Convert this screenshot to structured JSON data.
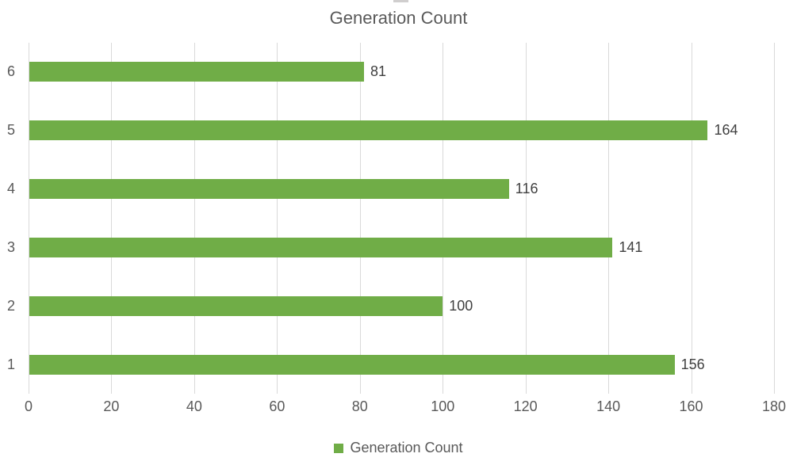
{
  "chart_data": {
    "type": "bar",
    "orientation": "horizontal",
    "title": "Generation Count",
    "series_name": "Generation Count",
    "categories": [
      "1",
      "2",
      "3",
      "4",
      "5",
      "6"
    ],
    "values": [
      156,
      100,
      141,
      116,
      164,
      81
    ],
    "x_ticks": [
      0,
      20,
      40,
      60,
      80,
      100,
      120,
      140,
      160,
      180
    ],
    "xlim": [
      0,
      180
    ],
    "xlabel": "",
    "ylabel": "",
    "grid": "vertical-major-only",
    "data_labels": true,
    "legend_position": "bottom",
    "category_order_on_screen_top_to_bottom": [
      "6",
      "5",
      "4",
      "3",
      "2",
      "1"
    ]
  },
  "colors": {
    "bar": "#70AD47",
    "gridline": "#D9D9D9",
    "title_text": "#595959",
    "axis_text": "#595959",
    "data_label_text": "#404040",
    "legend_text": "#595959"
  },
  "legend": {
    "label": "Generation Count"
  }
}
